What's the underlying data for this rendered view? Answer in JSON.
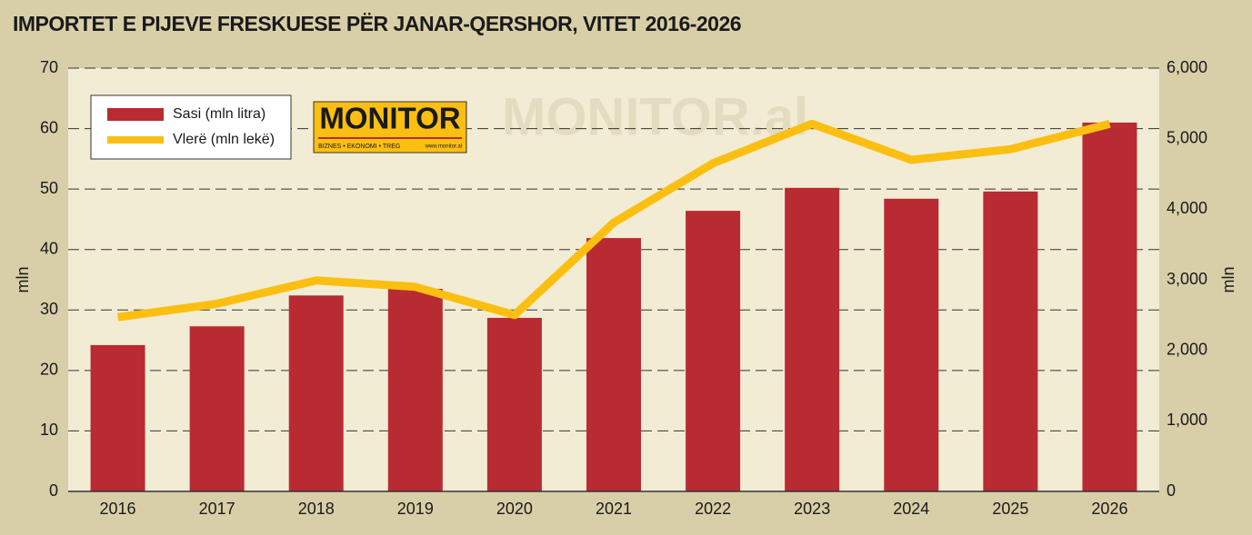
{
  "chart_data": {
    "type": "bar-line",
    "title": "IMPORTET E PIJEVE FRESKUESE PËR JANAR-QERSHOR, VITET 2016-2026",
    "ylabel": "mln",
    "y2label": "mln",
    "categories": [
      "2016",
      "2017",
      "2018",
      "2019",
      "2020",
      "2021",
      "2022",
      "2023",
      "2024",
      "2025",
      "2026"
    ],
    "series": [
      {
        "name": "Sasi (mln litra)",
        "color": "#b92b32",
        "kind": "bar",
        "values": [
          24.2,
          27.3,
          32.4,
          33.5,
          28.7,
          41.9,
          46.4,
          50.2,
          48.4,
          49.6,
          61.0
        ]
      },
      {
        "name": "Vlerë (mln lekë)",
        "color": "#fbbf12",
        "kind": "line",
        "axis": "y2",
        "values": [
          2470,
          2660,
          2990,
          2900,
          2500,
          3810,
          4650,
          5210,
          4700,
          4850,
          5210
        ]
      }
    ],
    "ylim": [
      0,
      70
    ],
    "yticks": [
      0,
      10,
      20,
      30,
      40,
      50,
      60,
      70
    ],
    "y2lim": [
      0,
      6000
    ],
    "y2ticks": [
      0,
      {
        "value": 1000,
        "label": "1,000"
      },
      {
        "value": 2000,
        "label": "2,000"
      },
      {
        "value": 3000,
        "label": "3,000"
      },
      {
        "value": 4000,
        "label": "4,000"
      },
      {
        "value": 5000,
        "label": "5,000"
      },
      {
        "value": 6000,
        "label": "6,000"
      }
    ],
    "grid": true,
    "legend": "upper left",
    "logo": {
      "name": "MONITOR",
      "tagline": "BIZNES • EKONOMI • TREG",
      "url": "www.monitor.al"
    },
    "watermark": "MONITOR.al"
  }
}
